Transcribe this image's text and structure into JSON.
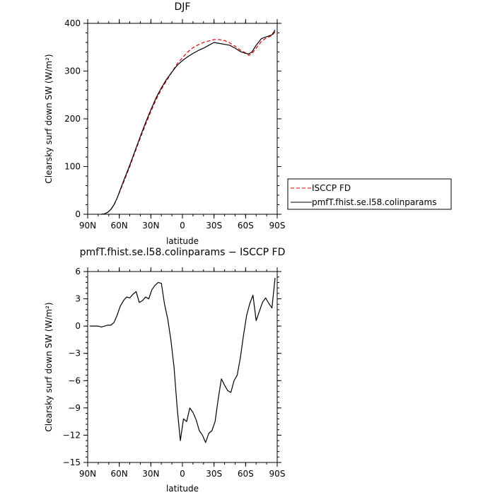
{
  "chart_data": [
    {
      "type": "line",
      "title": "DJF",
      "xlabel": "latitude",
      "ylabel": "Clearsky surf down SW (W/m²)",
      "xlim": [
        -90,
        90
      ],
      "ylim": [
        0,
        400
      ],
      "x_tick_values": [
        -90,
        -60,
        -30,
        0,
        30,
        60,
        90
      ],
      "x_tick_labels": [
        "90N",
        "60N",
        "30N",
        "0",
        "30S",
        "60S",
        "90S"
      ],
      "y_tick_values": [
        0,
        100,
        200,
        300,
        400
      ],
      "y_tick_labels": [
        "0",
        "100",
        "200",
        "300",
        "400"
      ],
      "legend": {
        "placement": "right-middle"
      },
      "series": [
        {
          "name": "ISCCP FD",
          "color": "#e00000",
          "dash": "dashed",
          "x": [
            -77,
            -74,
            -71,
            -68,
            -65,
            -62,
            -59,
            -55,
            -50,
            -45,
            -40,
            -35,
            -30,
            -25,
            -20,
            -15,
            -10,
            -5,
            0,
            5,
            10,
            15,
            20,
            25,
            30,
            35,
            40,
            45,
            50,
            55,
            60,
            63,
            66,
            70,
            75,
            80,
            85,
            88
          ],
          "y": [
            0,
            1,
            4,
            10,
            20,
            34,
            50,
            72,
            100,
            130,
            160,
            188,
            215,
            240,
            262,
            280,
            298,
            315,
            328,
            340,
            349,
            355,
            360,
            363,
            366,
            366,
            364,
            359,
            352,
            344,
            338,
            333,
            336,
            348,
            362,
            370,
            374,
            382
          ]
        },
        {
          "name": "pmfT.fhist.se.l58.colinparams",
          "color": "#000000",
          "dash": "solid",
          "x": [
            -77,
            -74,
            -71,
            -68,
            -65,
            -62,
            -59,
            -55,
            -50,
            -45,
            -40,
            -35,
            -30,
            -25,
            -20,
            -15,
            -10,
            -5,
            0,
            5,
            10,
            15,
            20,
            25,
            30,
            35,
            40,
            45,
            50,
            55,
            60,
            63,
            66,
            70,
            75,
            80,
            85,
            88
          ],
          "y": [
            0,
            1,
            4,
            10,
            20,
            34,
            52,
            75,
            103,
            133,
            163,
            192,
            219,
            244,
            265,
            283,
            298,
            312,
            322,
            330,
            337,
            343,
            348,
            354,
            360,
            358,
            356,
            354,
            348,
            341,
            337,
            336,
            340,
            354,
            368,
            372,
            376,
            386
          ]
        }
      ]
    },
    {
      "type": "line",
      "title": "pmfT.fhist.se.l58.colinparams − ISCCP FD",
      "xlabel": "latitude",
      "ylabel": "Clearsky surf down SW (W/m²)",
      "xlim": [
        -90,
        90
      ],
      "ylim": [
        -15,
        6
      ],
      "x_tick_values": [
        -90,
        -60,
        -30,
        0,
        30,
        60,
        90
      ],
      "x_tick_labels": [
        "90N",
        "60N",
        "30N",
        "0",
        "30S",
        "60S",
        "90S"
      ],
      "y_tick_values": [
        -15,
        -12,
        -9,
        -6,
        -3,
        0,
        3,
        6
      ],
      "y_tick_labels": [
        "−15",
        "−12",
        "−9",
        "−6",
        "−3",
        "0",
        "3",
        "6"
      ],
      "series": [
        {
          "color": "#000000",
          "dash": "solid",
          "x": [
            -88,
            -85,
            -80,
            -77,
            -74,
            -71,
            -68,
            -65,
            -62,
            -59,
            -56,
            -53,
            -50,
            -47,
            -44,
            -41,
            -38,
            -35,
            -32,
            -29,
            -26,
            -23,
            -20,
            -17,
            -14,
            -11,
            -8,
            -5,
            -2,
            1,
            4,
            7,
            10,
            13,
            16,
            19,
            22,
            25,
            28,
            31,
            34,
            37,
            40,
            43,
            46,
            49,
            52,
            55,
            58,
            61,
            64,
            67,
            70,
            73,
            76,
            79,
            82,
            85,
            88
          ],
          "y": [
            0,
            0,
            0,
            -0.1,
            0,
            0.1,
            0.1,
            0.4,
            1.2,
            2.2,
            2.8,
            3.2,
            3.1,
            3.5,
            3.8,
            2.6,
            2.8,
            3.2,
            3.0,
            4.0,
            4.5,
            4.8,
            4.7,
            2.4,
            0.8,
            -1.5,
            -4.5,
            -9.0,
            -12.6,
            -10.2,
            -10.5,
            -9.0,
            -9.5,
            -10.3,
            -11.5,
            -12.0,
            -12.8,
            -11.8,
            -11.5,
            -10.5,
            -8.0,
            -5.8,
            -6.5,
            -7.1,
            -7.3,
            -6.0,
            -5.4,
            -3.5,
            -1.0,
            1.2,
            2.5,
            3.4,
            0.6,
            1.6,
            2.6,
            3.1,
            2.5,
            2.0,
            5.3
          ]
        }
      ]
    }
  ]
}
